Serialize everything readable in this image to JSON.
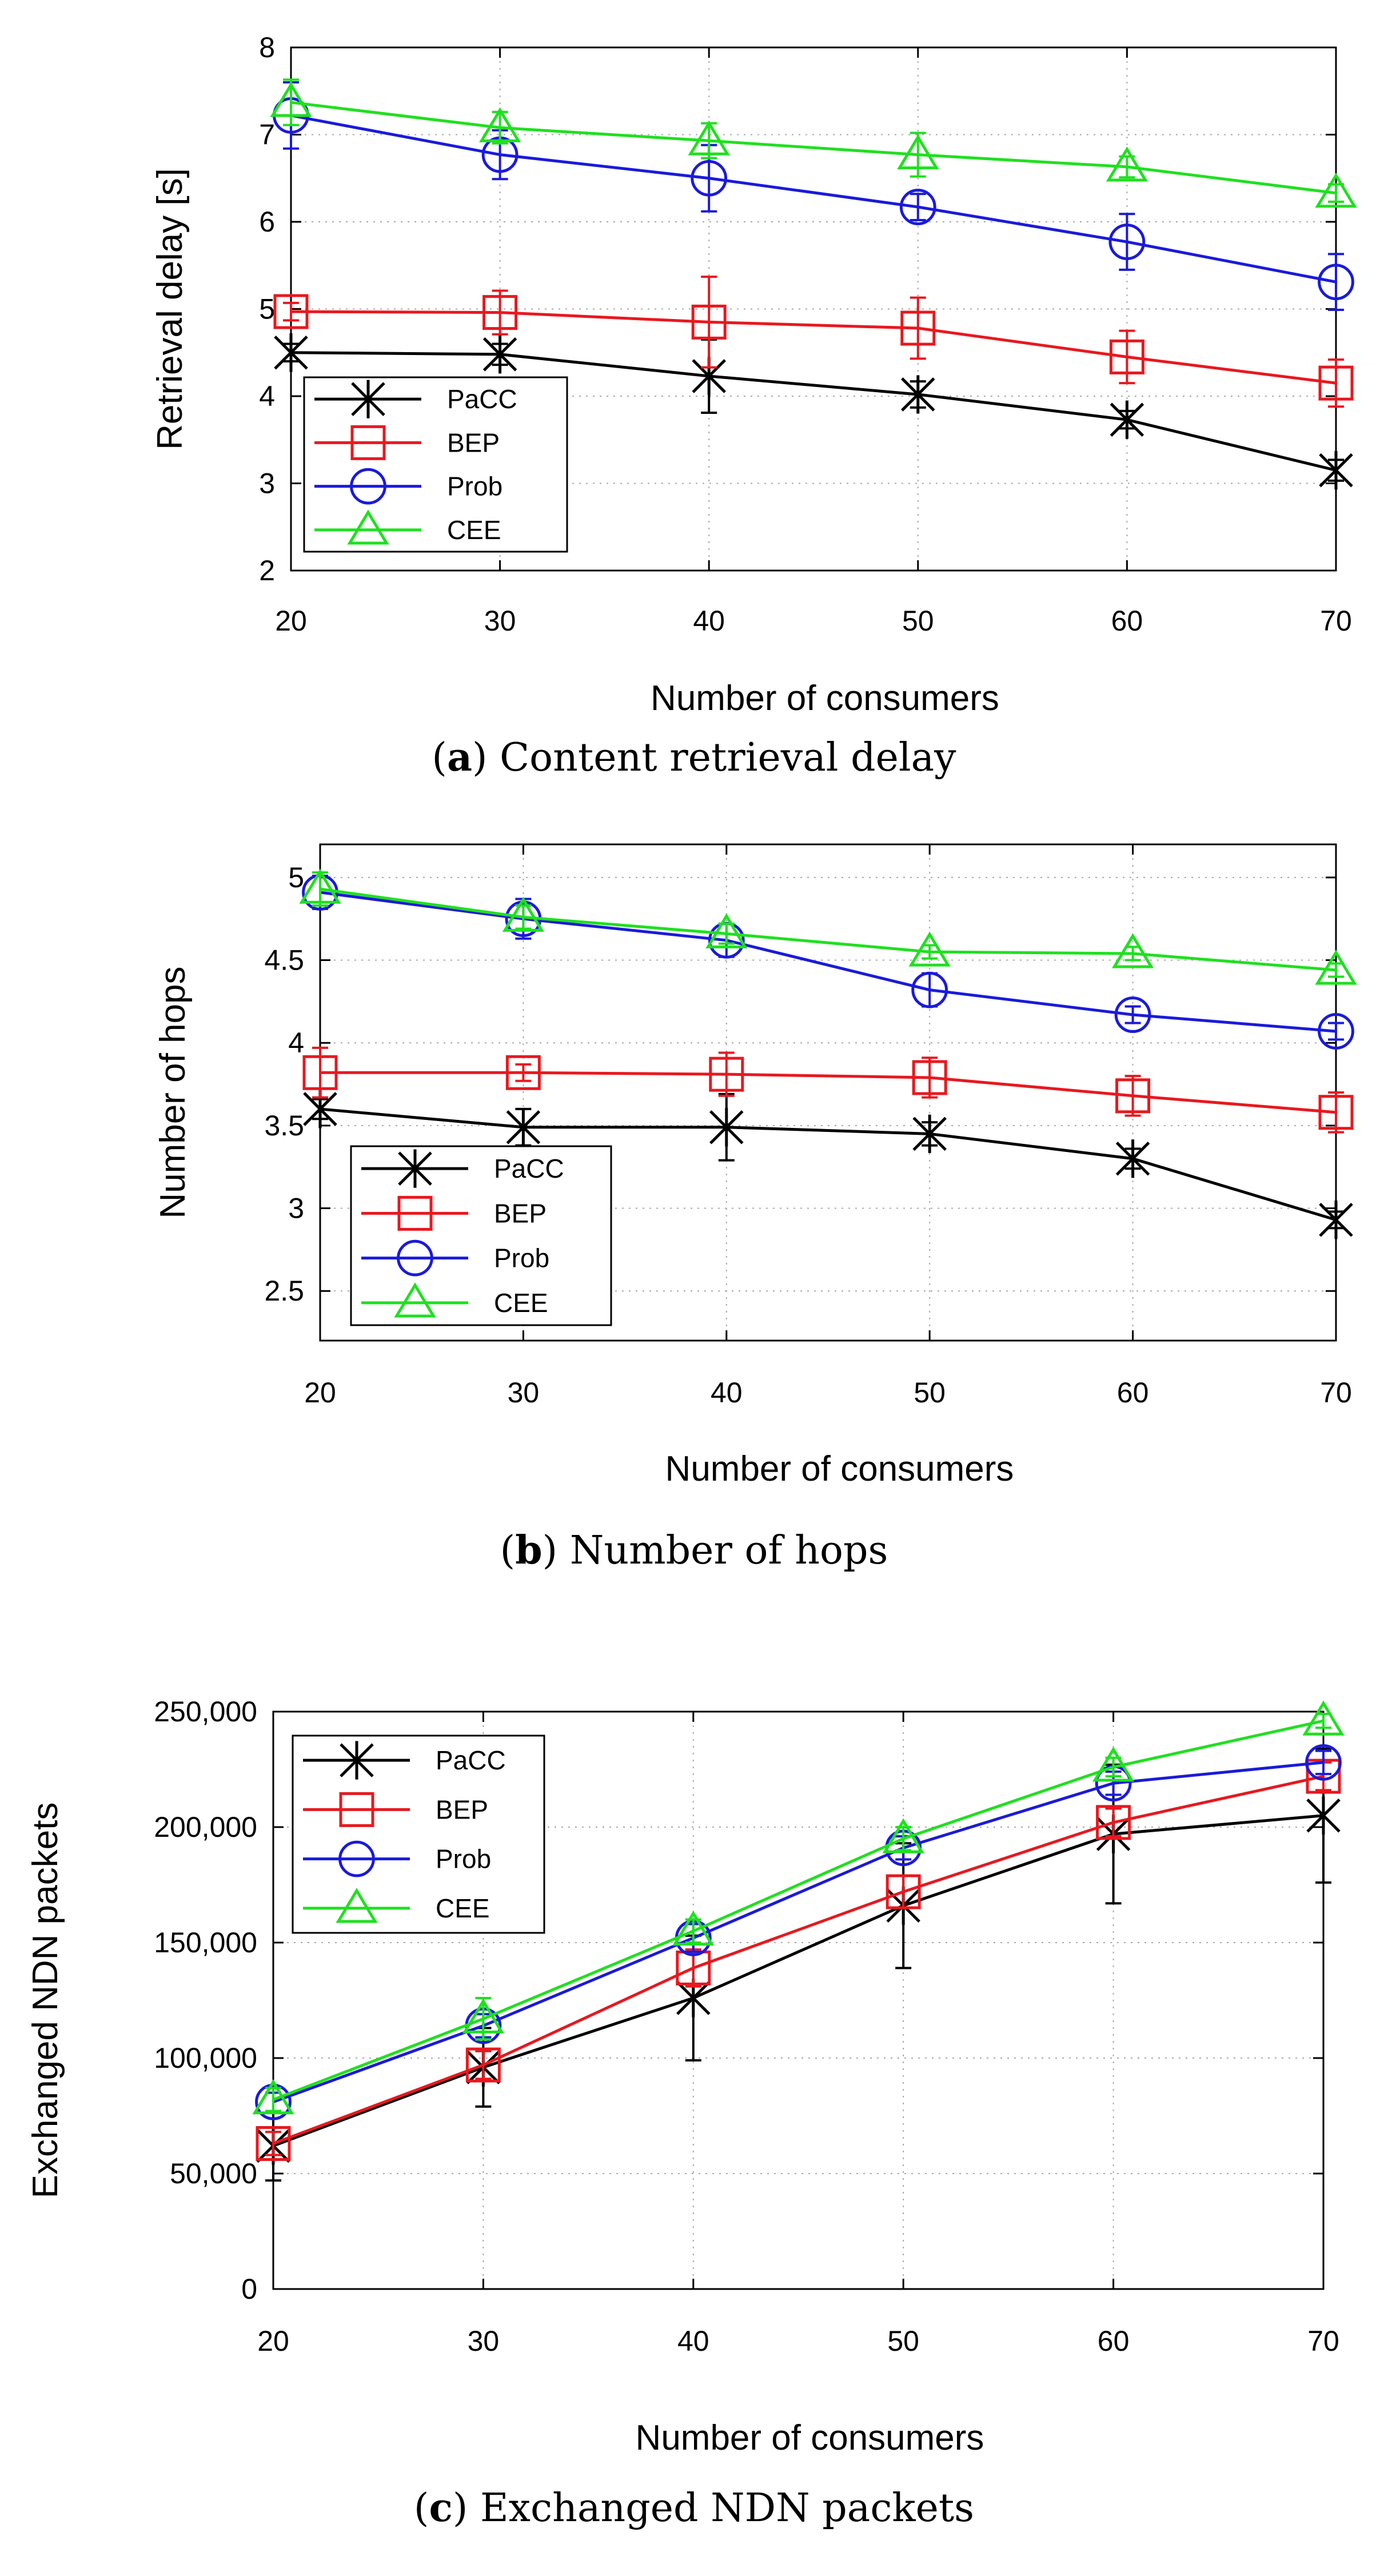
{
  "figure": {
    "series_names": [
      "PaCC",
      "BEP",
      "Prob",
      "CEE"
    ],
    "colors": {
      "PaCC": "#000000",
      "BEP": "#e8181e",
      "Prob": "#1a1adc",
      "CEE": "#1fe01f"
    },
    "markers": {
      "PaCC": "asterisk",
      "BEP": "square",
      "Prob": "circle",
      "CEE": "triangle"
    }
  },
  "chart_data": [
    {
      "type": "line",
      "panel": "a",
      "caption_label": "a",
      "caption_text": "Content retrieval delay",
      "xlabel": "Number of consumers",
      "ylabel": "Retrieval delay [s]",
      "x": [
        20,
        30,
        40,
        50,
        60,
        70
      ],
      "xlim": [
        20,
        70
      ],
      "ylim": [
        2,
        8
      ],
      "xticks": [
        20,
        30,
        40,
        50,
        60,
        70
      ],
      "yticks": [
        2,
        3,
        4,
        5,
        6,
        7,
        8
      ],
      "ytick_labels": [
        "2",
        "3",
        "4",
        "5",
        "6",
        "7",
        "8"
      ],
      "grid": true,
      "legend_position": "bottom-left",
      "series": [
        {
          "name": "PaCC",
          "values": [
            4.5,
            4.48,
            4.23,
            4.02,
            3.73,
            3.15
          ],
          "errors": [
            0.1,
            0.12,
            0.42,
            0.15,
            0.1,
            0.12
          ]
        },
        {
          "name": "BEP",
          "values": [
            4.97,
            4.96,
            4.85,
            4.78,
            4.45,
            4.15
          ],
          "errors": [
            0.1,
            0.25,
            0.52,
            0.35,
            0.3,
            0.27
          ]
        },
        {
          "name": "Prob",
          "values": [
            7.22,
            6.77,
            6.5,
            6.17,
            5.77,
            5.31
          ],
          "errors": [
            0.38,
            0.28,
            0.38,
            0.15,
            0.32,
            0.32
          ]
        },
        {
          "name": "CEE",
          "values": [
            7.37,
            7.08,
            6.93,
            6.77,
            6.63,
            6.33
          ],
          "errors": [
            0.26,
            0.18,
            0.2,
            0.25,
            0.12,
            0.1
          ]
        }
      ]
    },
    {
      "type": "line",
      "panel": "b",
      "caption_label": "b",
      "caption_text": "Number of hops",
      "xlabel": "Number of consumers",
      "ylabel": "Number of hops",
      "x": [
        20,
        30,
        40,
        50,
        60,
        70
      ],
      "xlim": [
        20,
        70
      ],
      "ylim": [
        2.2,
        5.2
      ],
      "xticks": [
        20,
        30,
        40,
        50,
        60,
        70
      ],
      "yticks": [
        2.5,
        3,
        3.5,
        4,
        4.5,
        5
      ],
      "ytick_labels": [
        "2.5",
        "3",
        "3.5",
        "4",
        "4.5",
        "5"
      ],
      "grid": true,
      "legend_position": "bottom-left",
      "series": [
        {
          "name": "PaCC",
          "values": [
            3.6,
            3.49,
            3.49,
            3.45,
            3.3,
            2.93
          ],
          "errors": [
            0.06,
            0.11,
            0.2,
            0.07,
            0.06,
            0.05
          ]
        },
        {
          "name": "BEP",
          "values": [
            3.82,
            3.82,
            3.81,
            3.79,
            3.68,
            3.58
          ],
          "errors": [
            0.15,
            0.05,
            0.13,
            0.12,
            0.12,
            0.12
          ]
        },
        {
          "name": "Prob",
          "values": [
            4.91,
            4.75,
            4.62,
            4.32,
            4.17,
            4.07
          ],
          "errors": [
            0.1,
            0.12,
            0.1,
            0.1,
            0.05,
            0.05
          ]
        },
        {
          "name": "CEE",
          "values": [
            4.93,
            4.76,
            4.66,
            4.55,
            4.54,
            4.44
          ],
          "errors": [
            0.1,
            0.07,
            0.06,
            0.04,
            0.04,
            0.04
          ]
        }
      ]
    },
    {
      "type": "line",
      "panel": "c",
      "caption_label": "c",
      "caption_text": "Exchanged NDN packets",
      "xlabel": "Number of consumers",
      "ylabel": "Exchanged NDN packets",
      "x": [
        20,
        30,
        40,
        50,
        60,
        70
      ],
      "xlim": [
        20,
        70
      ],
      "ylim": [
        0,
        250000
      ],
      "xticks": [
        20,
        30,
        40,
        50,
        60,
        70
      ],
      "yticks": [
        0,
        50000,
        100000,
        150000,
        200000,
        250000
      ],
      "ytick_labels": [
        "0",
        "50,000",
        "100,000",
        "150,000",
        "200,000",
        "250,000"
      ],
      "grid": true,
      "legend_position": "top-left",
      "series": [
        {
          "name": "PaCC",
          "values": [
            62000,
            96000,
            126000,
            166000,
            197000,
            205000
          ],
          "errors": [
            15000,
            17000,
            27000,
            27000,
            30000,
            29000
          ]
        },
        {
          "name": "BEP",
          "values": [
            63000,
            97000,
            139000,
            172000,
            202000,
            222000
          ],
          "errors": [
            5000,
            6000,
            8000,
            7000,
            6000,
            6000
          ]
        },
        {
          "name": "Prob",
          "values": [
            81000,
            114000,
            152000,
            191000,
            219000,
            228000
          ],
          "errors": [
            4000,
            5000,
            6000,
            5000,
            5000,
            5000
          ]
        },
        {
          "name": "CEE",
          "values": [
            82000,
            117000,
            155000,
            195000,
            226000,
            246000
          ],
          "errors": [
            5000,
            9000,
            5000,
            5000,
            4000,
            3000
          ]
        }
      ]
    }
  ]
}
